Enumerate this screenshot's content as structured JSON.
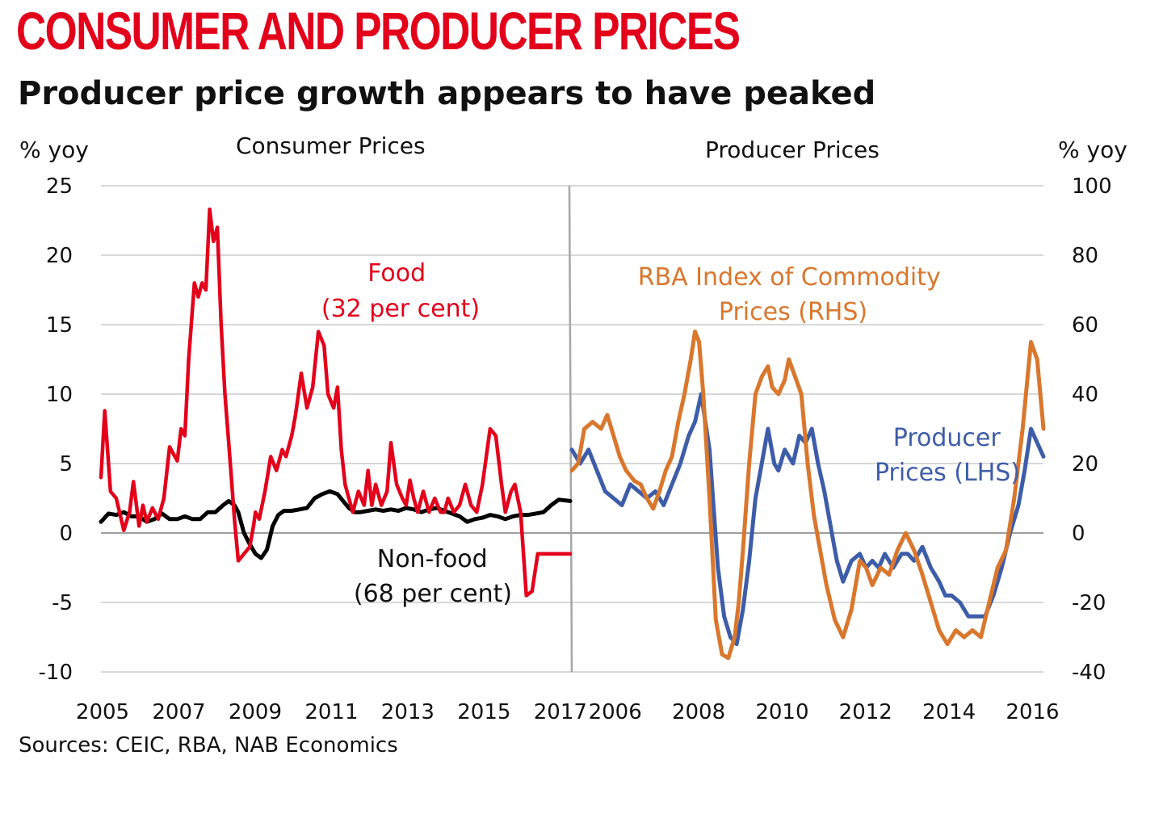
{
  "header": {
    "title": "CONSUMER AND PRODUCER PRICES",
    "subtitle": "Producer price growth appears to have peaked",
    "sources": "Sources: CEIC, RBA, NAB Economics"
  },
  "colors": {
    "food": "#e3001b",
    "nonfood": "#000000",
    "commodity": "#d9772d",
    "producer": "#3d5da8",
    "grid": "#bfbfbf",
    "divider": "#a6a6a6"
  },
  "chart_data": [
    {
      "type": "line",
      "title": "Consumer Prices",
      "ylabel": "% yoy",
      "ylim": [
        -10,
        25
      ],
      "yticks": [
        "25",
        "20",
        "15",
        "10",
        "5",
        "0",
        "-5",
        "-10"
      ],
      "yticks_values": [
        25,
        20,
        15,
        10,
        5,
        0,
        -5,
        -10
      ],
      "xlim": [
        2005,
        2017.3
      ],
      "xticks": [
        "2005",
        "2007",
        "2009",
        "2011",
        "2013",
        "2015",
        "2017"
      ],
      "xticks_values": [
        2005,
        2007,
        2009,
        2011,
        2013,
        2015,
        2017
      ],
      "annotations": [
        {
          "text": [
            "Food",
            "(32 per cent)"
          ],
          "series": "food"
        },
        {
          "text": [
            "Non-food",
            "(68 per cent)"
          ],
          "series": "nonfood"
        }
      ],
      "series": [
        {
          "key": "food",
          "x": [
            2005.0,
            2005.1,
            2005.25,
            2005.4,
            2005.6,
            2005.75,
            2005.85,
            2006.0,
            2006.1,
            2006.2,
            2006.35,
            2006.5,
            2006.65,
            2006.8,
            2007.0,
            2007.1,
            2007.2,
            2007.3,
            2007.45,
            2007.55,
            2007.65,
            2007.75,
            2007.85,
            2007.95,
            2008.05,
            2008.15,
            2008.25,
            2008.35,
            2008.5,
            2008.6,
            2008.75,
            2008.9,
            2009.0,
            2009.05,
            2009.15,
            2009.3,
            2009.45,
            2009.6,
            2009.75,
            2009.85,
            2010.0,
            2010.1,
            2010.25,
            2010.4,
            2010.55,
            2010.7,
            2010.85,
            2010.95,
            2011.1,
            2011.2,
            2011.3,
            2011.4,
            2011.5,
            2011.6,
            2011.75,
            2011.9,
            2012.0,
            2012.1,
            2012.2,
            2012.35,
            2012.5,
            2012.6,
            2012.75,
            2012.9,
            2013.0,
            2013.1,
            2013.2,
            2013.3,
            2013.45,
            2013.6,
            2013.75,
            2013.9,
            2014.0,
            2014.1,
            2014.25,
            2014.4,
            2014.55,
            2014.7,
            2014.85,
            2015.0,
            2015.1,
            2015.2,
            2015.35,
            2015.5,
            2015.6,
            2015.75,
            2015.85,
            2016.0,
            2016.15,
            2016.3,
            2016.45,
            2016.6,
            2016.75,
            2016.9,
            2017.0,
            2017.1,
            2017.2,
            2017.3
          ],
          "y": [
            4.0,
            8.8,
            3.0,
            2.5,
            0.2,
            1.5,
            3.7,
            0.5,
            2.0,
            0.8,
            1.8,
            1.0,
            2.5,
            6.2,
            5.2,
            7.5,
            7.0,
            12.5,
            18.0,
            17.0,
            18.0,
            17.5,
            23.3,
            21.0,
            22.0,
            15.0,
            10.0,
            6.5,
            1.0,
            -2.0,
            -1.5,
            -1.0,
            0.5,
            1.5,
            1.0,
            3.0,
            5.5,
            4.5,
            6.0,
            5.5,
            7.0,
            8.5,
            11.5,
            9.0,
            10.5,
            14.5,
            13.5,
            10.0,
            9.0,
            10.5,
            6.0,
            3.5,
            2.5,
            1.5,
            3.0,
            2.0,
            4.5,
            2.0,
            3.5,
            2.0,
            3.0,
            6.5,
            3.5,
            2.5,
            2.0,
            3.8,
            2.5,
            1.5,
            3.0,
            1.5,
            2.5,
            1.5,
            1.5,
            2.5,
            1.5,
            2.0,
            3.5,
            2.0,
            1.5,
            3.5,
            5.5,
            7.5,
            7.0,
            3.5,
            1.5,
            3.0,
            3.5,
            1.5,
            -4.5,
            -4.2,
            -1.5,
            -1.5,
            -1.5,
            -1.5,
            -1.5,
            -1.5,
            -1.5,
            -1.5
          ]
        },
        {
          "key": "nonfood",
          "x": [
            2005.0,
            2005.2,
            2005.4,
            2005.6,
            2005.8,
            2006.0,
            2006.2,
            2006.4,
            2006.6,
            2006.8,
            2007.0,
            2007.2,
            2007.4,
            2007.6,
            2007.8,
            2008.0,
            2008.2,
            2008.35,
            2008.5,
            2008.6,
            2008.75,
            2008.9,
            2009.05,
            2009.2,
            2009.35,
            2009.5,
            2009.65,
            2009.8,
            2010.0,
            2010.2,
            2010.4,
            2010.6,
            2010.8,
            2011.0,
            2011.2,
            2011.35,
            2011.5,
            2011.65,
            2011.8,
            2012.0,
            2012.2,
            2012.4,
            2012.6,
            2012.8,
            2013.0,
            2013.2,
            2013.4,
            2013.6,
            2013.8,
            2014.0,
            2014.2,
            2014.4,
            2014.6,
            2014.8,
            2015.0,
            2015.2,
            2015.4,
            2015.6,
            2015.8,
            2016.0,
            2016.2,
            2016.4,
            2016.6,
            2016.8,
            2017.0,
            2017.3
          ],
          "y": [
            0.8,
            1.4,
            1.3,
            1.5,
            1.2,
            1.2,
            0.8,
            1.0,
            1.4,
            1.0,
            1.0,
            1.2,
            1.0,
            1.0,
            1.5,
            1.5,
            2.0,
            2.3,
            2.0,
            1.5,
            0.0,
            -0.8,
            -1.5,
            -1.8,
            -1.2,
            0.5,
            1.3,
            1.6,
            1.6,
            1.7,
            1.8,
            2.5,
            2.8,
            3.0,
            2.8,
            2.3,
            1.8,
            1.5,
            1.5,
            1.6,
            1.7,
            1.6,
            1.7,
            1.6,
            1.8,
            1.7,
            1.5,
            1.7,
            1.8,
            1.6,
            1.4,
            1.2,
            0.8,
            1.0,
            1.1,
            1.3,
            1.2,
            1.0,
            1.2,
            1.3,
            1.3,
            1.4,
            1.5,
            2.0,
            2.4,
            2.3
          ]
        }
      ]
    },
    {
      "type": "line",
      "title": "Producer Prices",
      "ylabel": "% yoy",
      "y_left_lim": [
        -10,
        25
      ],
      "y_right_lim": [
        -40,
        100
      ],
      "yticks_right": [
        "100",
        "80",
        "60",
        "40",
        "20",
        "0",
        "-20",
        "-40"
      ],
      "yticks_right_values": [
        100,
        80,
        60,
        40,
        20,
        0,
        -20,
        -40
      ],
      "xlim": [
        2005.0,
        2016.3
      ],
      "xticks": [
        "2006",
        "2008",
        "2010",
        "2012",
        "2014",
        "2016"
      ],
      "xticks_values": [
        2006,
        2008,
        2010,
        2012,
        2014,
        2016
      ],
      "annotations": [
        {
          "text": [
            "RBA Index of Commodity",
            "Prices (RHS)"
          ],
          "series": "commodity"
        },
        {
          "text": [
            "Producer",
            "Prices (LHS)"
          ],
          "series": "producer"
        }
      ],
      "series": [
        {
          "key": "producer",
          "axis": "left",
          "x": [
            2005.0,
            2005.2,
            2005.4,
            2005.6,
            2005.8,
            2006.0,
            2006.2,
            2006.4,
            2006.6,
            2006.8,
            2007.0,
            2007.2,
            2007.4,
            2007.6,
            2007.8,
            2007.95,
            2008.1,
            2008.3,
            2008.5,
            2008.65,
            2008.8,
            2008.95,
            2009.1,
            2009.25,
            2009.4,
            2009.55,
            2009.7,
            2009.85,
            2009.95,
            2010.1,
            2010.3,
            2010.45,
            2010.6,
            2010.75,
            2010.9,
            2011.05,
            2011.2,
            2011.35,
            2011.5,
            2011.7,
            2011.9,
            2012.05,
            2012.2,
            2012.35,
            2012.5,
            2012.7,
            2012.9,
            2013.05,
            2013.2,
            2013.4,
            2013.6,
            2013.8,
            2013.95,
            2014.1,
            2014.3,
            2014.5,
            2014.7,
            2014.9,
            2015.1,
            2015.3,
            2015.5,
            2015.7,
            2015.85,
            2016.0,
            2016.15,
            2016.3
          ],
          "y": [
            6.0,
            5.0,
            6.0,
            4.5,
            3.0,
            2.5,
            2.0,
            3.5,
            3.0,
            2.5,
            3.0,
            2.0,
            3.5,
            5.0,
            7.0,
            8.0,
            10.0,
            6.0,
            -2.5,
            -6.0,
            -7.5,
            -8.0,
            -5.5,
            -2.0,
            2.5,
            5.0,
            7.5,
            5.0,
            4.5,
            6.0,
            5.0,
            7.0,
            6.5,
            7.5,
            5.0,
            3.0,
            0.5,
            -2.0,
            -3.5,
            -2.0,
            -1.5,
            -2.5,
            -2.0,
            -2.5,
            -1.5,
            -2.5,
            -1.5,
            -1.5,
            -2.0,
            -1.0,
            -2.5,
            -3.5,
            -4.5,
            -4.5,
            -5.0,
            -6.0,
            -6.0,
            -6.0,
            -4.5,
            -2.5,
            0.0,
            2.0,
            4.5,
            7.5,
            6.5,
            5.5
          ]
        },
        {
          "key": "commodity",
          "axis": "right",
          "x": [
            2005.0,
            2005.15,
            2005.3,
            2005.5,
            2005.7,
            2005.85,
            2006.0,
            2006.15,
            2006.3,
            2006.5,
            2006.65,
            2006.8,
            2006.95,
            2007.1,
            2007.25,
            2007.4,
            2007.55,
            2007.7,
            2007.85,
            2007.95,
            2008.05,
            2008.15,
            2008.3,
            2008.45,
            2008.6,
            2008.75,
            2008.9,
            2009.0,
            2009.1,
            2009.25,
            2009.4,
            2009.55,
            2009.7,
            2009.8,
            2009.95,
            2010.1,
            2010.2,
            2010.35,
            2010.5,
            2010.65,
            2010.8,
            2010.95,
            2011.1,
            2011.3,
            2011.5,
            2011.7,
            2011.9,
            2012.05,
            2012.2,
            2012.4,
            2012.6,
            2012.8,
            2013.0,
            2013.2,
            2013.4,
            2013.6,
            2013.8,
            2014.0,
            2014.2,
            2014.4,
            2014.6,
            2014.8,
            2015.0,
            2015.2,
            2015.4,
            2015.6,
            2015.8,
            2016.0,
            2016.15,
            2016.3
          ],
          "y": [
            18.0,
            20.0,
            30.0,
            32.0,
            30.0,
            34.0,
            28.0,
            22.0,
            18.0,
            15.0,
            14.0,
            10.0,
            7.0,
            12.0,
            18.0,
            22.0,
            32.0,
            40.0,
            50.0,
            58.0,
            55.0,
            40.0,
            10.0,
            -25.0,
            -35.0,
            -36.0,
            -30.0,
            -20.0,
            -5.0,
            20.0,
            40.0,
            45.0,
            48.0,
            42.0,
            40.0,
            44.0,
            50.0,
            45.0,
            40.0,
            20.0,
            5.0,
            -5.0,
            -15.0,
            -25.0,
            -30.0,
            -22.0,
            -8.0,
            -10.0,
            -15.0,
            -10.0,
            -12.0,
            -5.0,
            0.0,
            -5.0,
            -12.0,
            -20.0,
            -28.0,
            -32.0,
            -28.0,
            -30.0,
            -28.0,
            -30.0,
            -20.0,
            -10.0,
            -5.0,
            10.0,
            30.0,
            55.0,
            50.0,
            30.0
          ]
        }
      ]
    }
  ]
}
